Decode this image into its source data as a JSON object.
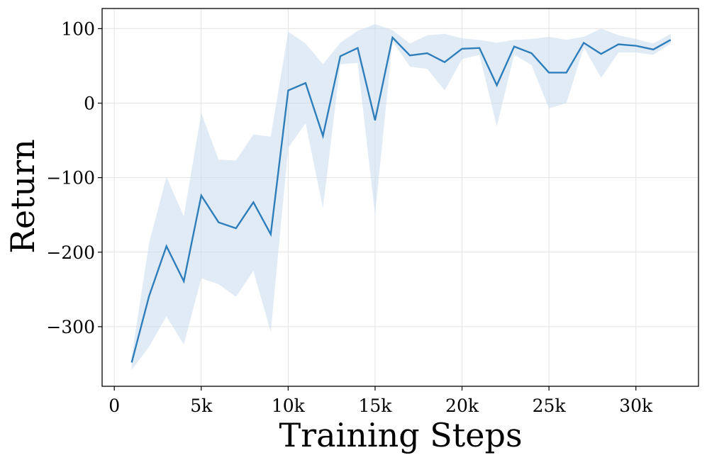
{
  "chart_data": {
    "type": "line",
    "title": "",
    "xlabel": "Training Steps",
    "ylabel": "Return",
    "xlim": [
      -700,
      33600
    ],
    "ylim": [
      -380,
      127
    ],
    "grid": true,
    "legend": "none",
    "colors": {
      "line": "#2e7ebc",
      "band": "#c6dbef"
    },
    "xticks": [
      {
        "value": 0,
        "label": "0"
      },
      {
        "value": 5000,
        "label": "5k"
      },
      {
        "value": 10000,
        "label": "10k"
      },
      {
        "value": 15000,
        "label": "15k"
      },
      {
        "value": 20000,
        "label": "20k"
      },
      {
        "value": 25000,
        "label": "25k"
      },
      {
        "value": 30000,
        "label": "30k"
      }
    ],
    "yticks": [
      {
        "value": 100,
        "label": "100"
      },
      {
        "value": 0,
        "label": "0"
      },
      {
        "value": -100,
        "label": "−100"
      },
      {
        "value": -200,
        "label": "−200"
      },
      {
        "value": -300,
        "label": "−300"
      }
    ],
    "series": [
      {
        "x": [
          1000,
          2000,
          3000,
          4000,
          5000,
          6000,
          7000,
          8000,
          9000,
          10000,
          11000,
          12000,
          13000,
          14000,
          15000,
          16000,
          17000,
          18000,
          19000,
          20000,
          21000,
          22000,
          23000,
          24000,
          25000,
          26000,
          27000,
          28000,
          29000,
          30000,
          31000,
          32000
        ],
        "y": [
          -348,
          -259,
          -192,
          -239,
          -124,
          -160,
          -168,
          -133,
          -176,
          17,
          27,
          -44,
          63,
          74,
          -23,
          88,
          64,
          67,
          55,
          73,
          74,
          24,
          76,
          67,
          41,
          41,
          81,
          66,
          79,
          77,
          72,
          85
        ],
        "upper": [
          -340,
          -188,
          -99,
          -152,
          -13,
          -76,
          -77,
          -42,
          -45,
          96,
          80,
          52,
          81,
          97,
          106,
          98,
          80,
          91,
          93,
          87,
          85,
          81,
          85,
          86,
          89,
          85,
          89,
          100,
          91,
          86,
          80,
          93
        ],
        "lower": [
          -358,
          -327,
          -286,
          -324,
          -235,
          -243,
          -260,
          -225,
          -307,
          -60,
          -27,
          -141,
          52,
          54,
          -150,
          83,
          49,
          46,
          17,
          59,
          65,
          -31,
          65,
          51,
          -7,
          0,
          75,
          34,
          68,
          68,
          65,
          80
        ]
      }
    ]
  }
}
